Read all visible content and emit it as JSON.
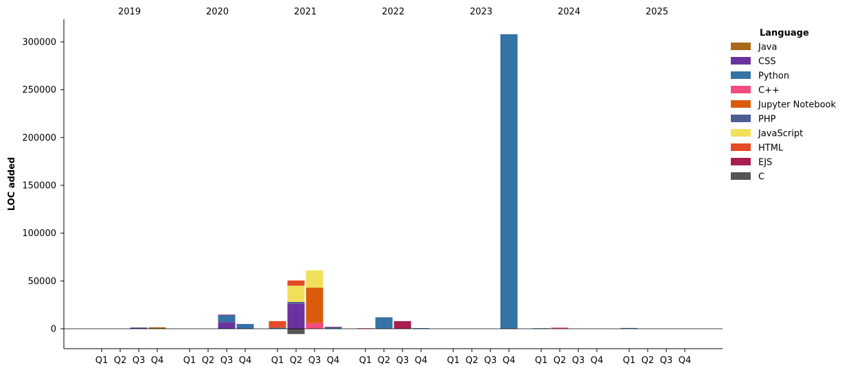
{
  "chart_data": {
    "type": "bar",
    "stacked": true,
    "ylabel": "LOC added",
    "ylim": [
      -20000,
      325000
    ],
    "yticks": [
      0,
      50000,
      100000,
      150000,
      200000,
      250000,
      300000
    ],
    "zero_line": true,
    "grid": false,
    "years": [
      "2019",
      "2020",
      "2021",
      "2022",
      "2023",
      "2024",
      "2025"
    ],
    "quarters": [
      "Q1",
      "Q2",
      "Q3",
      "Q4"
    ],
    "legend": {
      "title": "Language",
      "placement": "right"
    },
    "series": [
      {
        "name": "Java",
        "color": "#a8691b",
        "values": [
          0,
          0,
          0,
          1500,
          0,
          0,
          0,
          0,
          0,
          0,
          0,
          0,
          0,
          0,
          0,
          0,
          0,
          0,
          0,
          0,
          0,
          0,
          0,
          0,
          0,
          0,
          0,
          0
        ]
      },
      {
        "name": "CSS",
        "color": "#6a329f",
        "values": [
          0,
          0,
          1000,
          0,
          0,
          0,
          7000,
          0,
          0,
          26000,
          0,
          0,
          0,
          0,
          0,
          0,
          0,
          0,
          0,
          0,
          0,
          0,
          0,
          0,
          0,
          0,
          0,
          0
        ]
      },
      {
        "name": "Python",
        "color": "#3572a5",
        "values": [
          0,
          0,
          0,
          0,
          0,
          0,
          7500,
          5000,
          1000,
          0,
          0,
          1500,
          0,
          12000,
          0,
          700,
          0,
          0,
          0,
          308000,
          600,
          0,
          0,
          0,
          800,
          0,
          0,
          0
        ]
      },
      {
        "name": "C++",
        "color": "#f34b7d",
        "values": [
          0,
          0,
          0,
          0,
          0,
          0,
          500,
          0,
          0,
          0,
          6000,
          0,
          600,
          0,
          0,
          0,
          0,
          0,
          0,
          0,
          0,
          1200,
          0,
          0,
          0,
          0,
          0,
          0
        ]
      },
      {
        "name": "Jupyter Notebook",
        "color": "#da5b0b",
        "values": [
          0,
          0,
          0,
          0,
          0,
          0,
          0,
          0,
          0,
          0,
          37000,
          0,
          0,
          0,
          0,
          0,
          0,
          0,
          0,
          0,
          0,
          0,
          0,
          0,
          0,
          0,
          0,
          0
        ]
      },
      {
        "name": "PHP",
        "color": "#4f5d95",
        "values": [
          0,
          0,
          300,
          0,
          0,
          0,
          0,
          0,
          0,
          2000,
          0,
          0,
          0,
          0,
          0,
          0,
          0,
          0,
          0,
          0,
          0,
          0,
          0,
          0,
          0,
          0,
          0,
          0
        ]
      },
      {
        "name": "JavaScript",
        "color": "#f1e05a",
        "values": [
          0,
          0,
          0,
          0,
          0,
          0,
          0,
          0,
          0,
          17000,
          18000,
          0,
          0,
          0,
          0,
          0,
          0,
          0,
          0,
          0,
          0,
          0,
          0,
          0,
          0,
          0,
          0,
          0
        ]
      },
      {
        "name": "HTML",
        "color": "#e34c26",
        "values": [
          0,
          0,
          0,
          0,
          0,
          0,
          0,
          0,
          7000,
          5500,
          0,
          0,
          0,
          0,
          0,
          0,
          0,
          0,
          0,
          0,
          0,
          0,
          0,
          0,
          0,
          0,
          0,
          0
        ]
      },
      {
        "name": "EJS",
        "color": "#a91e50",
        "values": [
          0,
          0,
          0,
          0,
          0,
          0,
          0,
          0,
          0,
          0,
          0,
          500,
          0,
          0,
          8000,
          0,
          0,
          0,
          0,
          0,
          0,
          0,
          0,
          0,
          0,
          0,
          0,
          0
        ]
      },
      {
        "name": "C",
        "color": "#555555",
        "values": [
          0,
          0,
          0,
          0,
          0,
          0,
          0,
          0,
          0,
          -5500,
          0,
          0,
          0,
          0,
          0,
          0,
          0,
          0,
          0,
          0,
          0,
          0,
          0,
          0,
          0,
          0,
          0,
          0
        ]
      }
    ]
  }
}
